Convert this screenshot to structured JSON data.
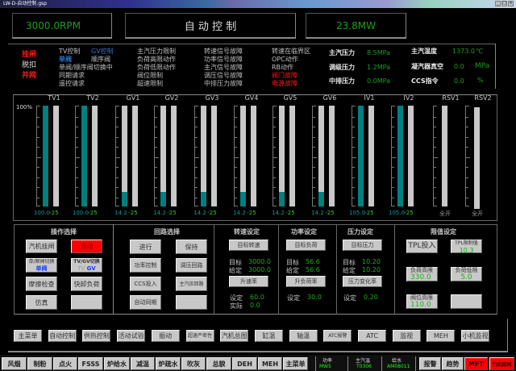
{
  "window": {
    "title": "LW-D-自动控制.gsp",
    "controls": [
      "_",
      "□",
      "×"
    ]
  },
  "header": {
    "speed": "3000.0RPM",
    "title": "自 动 控 制",
    "power": "23.8MW"
  },
  "status_left": {
    "trip": "挂闸",
    "release": "脱扣",
    "grid": "并网",
    "tv_ctrl": "TV控制",
    "gv_ctrl": "GV控制",
    "single_valve": "单阀",
    "seq_valve": "顺序阀",
    "switching": "单阀/顺序阀切换中",
    "sync_req": "同期请求",
    "remote_req": "遥控请求",
    "col3": [
      "主汽压力限制",
      "负荷高限动作",
      "负荷低限动作",
      "阀位限制",
      "超速限制"
    ],
    "col4": [
      "转速信号故障",
      "功率信号故障",
      "主汽信号故障",
      "调压信号故障",
      "中排压力故障"
    ],
    "col5": [
      "转速在临界区",
      "OPC动作",
      "RB动作",
      "阀门故障",
      "电源故障"
    ]
  },
  "status_right": {
    "main_pressure": {
      "label": "主汽压力",
      "value": "8.5MPa"
    },
    "reg_pressure": {
      "label": "调级压力",
      "value": "1.2MPa"
    },
    "mid_pressure": {
      "label": "中排压力",
      "value": "0.0MPa"
    },
    "main_temp": {
      "label": "主汽温度",
      "value": "1373.0",
      "unit": "℃"
    },
    "vacuum": {
      "label": "凝汽器真空",
      "value": "0.0",
      "unit": "MPa"
    },
    "ccs": {
      "label": "CCS指令",
      "value": "0.0",
      "unit": "%"
    }
  },
  "valves": {
    "scale_top": "100%",
    "items": [
      {
        "label": "TV1",
        "position": 100,
        "value": "100.0",
        "setpoint": "-25"
      },
      {
        "label": "TV2",
        "position": 100,
        "value": "100.0",
        "setpoint": "-25"
      },
      {
        "label": "GV1",
        "position": 14.2,
        "value": "14.2",
        "setpoint": "-25"
      },
      {
        "label": "GV2",
        "position": 14.2,
        "value": "14.2",
        "setpoint": "-25"
      },
      {
        "label": "GV3",
        "position": 14.2,
        "value": "14.2",
        "setpoint": "-25"
      },
      {
        "label": "GV4",
        "position": 14.2,
        "value": "14.2",
        "setpoint": "-25"
      },
      {
        "label": "GV5",
        "position": 14.2,
        "value": "14.2",
        "setpoint": "-25"
      },
      {
        "label": "GV6",
        "position": 14.2,
        "value": "14.2",
        "setpoint": "-25"
      },
      {
        "label": "IV1",
        "position": 105,
        "value": "105.0",
        "setpoint": "-25"
      },
      {
        "label": "IV2",
        "position": 105,
        "value": "105.0",
        "setpoint": "-25"
      },
      {
        "label": "RSV1",
        "position": null,
        "value": "全开",
        "setpoint": ""
      },
      {
        "label": "RSV2",
        "position": null,
        "value": "全开",
        "setpoint": ""
      }
    ],
    "fill_color": "#008080"
  },
  "ops": {
    "title": "操作选择",
    "trip_btn": "汽机挂闸",
    "auto_btn": "自动",
    "valve_switch": "单/顺阀切换",
    "valve_mode": "单阀",
    "tvgv_switch": "TV/GV切换",
    "tv": "TV",
    "gv": "GV",
    "friction": "摩擦检查",
    "fast_unload": "快卸负荷",
    "simulate": "仿真"
  },
  "loops": {
    "title": "回路选择",
    "run": "进行",
    "hold": "保持",
    "power_ctrl": "功率控制",
    "pressure_loop": "调压回路",
    "ccs_in": "CCS投入",
    "main_pressure_loop": "主汽压回路",
    "auto_sync": "自动同期"
  },
  "speed_set": {
    "title": "转速设定",
    "target_btn": "目标转速",
    "target_label": "目标",
    "target": "3000.0",
    "given_label": "给定",
    "given": "3000.0",
    "rate_btn": "升速率",
    "set_label": "设定",
    "set": "60.0",
    "actual_label": "实际",
    "actual": "0.0"
  },
  "power_set": {
    "title": "功率设定",
    "target_btn": "目标负荷",
    "target_label": "目标",
    "target": "56.6",
    "given_label": "给定",
    "given": "56.6",
    "rate_btn": "升负荷率",
    "set_label": "设定",
    "set": "30.0"
  },
  "pressure_set": {
    "title": "压力设定",
    "target_btn": "目标压力",
    "target_label": "目标",
    "target": "10.20",
    "given_label": "给定",
    "given": "10.20",
    "rate_btn": "压力变化率",
    "set_label": "设定",
    "set": "0.20"
  },
  "limits": {
    "title": "限值设定",
    "tpl_in": "TPL投入",
    "tpl_limit": "TPL限制值",
    "tpl_limit_val": "10.3",
    "load_high": "负荷高限",
    "load_high_val": "330.0",
    "load_low": "负荷低限",
    "load_low_val": "5.0",
    "valve_high": "阀位高限",
    "valve_high_val": "110.0"
  },
  "nav": [
    "主菜单",
    "自动控制",
    "供热控制",
    "活动试验",
    "振动",
    "超速严密性",
    "汽机总图",
    "缸温",
    "轴温",
    "ATC报警",
    "ATC",
    "监视",
    "MEH",
    "小机监视"
  ],
  "bottom": {
    "buttons": [
      "风烟",
      "制粉",
      "点火",
      "FSSS",
      "炉给水",
      "减温",
      "炉疏水",
      "吹灰",
      "总貌",
      "DEH",
      "MEH",
      "主菜单"
    ],
    "power_label": "功率",
    "power_val": "MW5",
    "temp_label": "主汽温",
    "temp_val": "T0306",
    "water_label": "给水",
    "water_val": "AM08011",
    "alarm": "报警",
    "trend": "趋势",
    "mft": "MFT",
    "turbine_trip": "汽机跳闸"
  },
  "colors": {
    "green": "#1aa01a",
    "red": "#ff0000",
    "teal": "#008080",
    "blue": "#2a7ad0"
  }
}
